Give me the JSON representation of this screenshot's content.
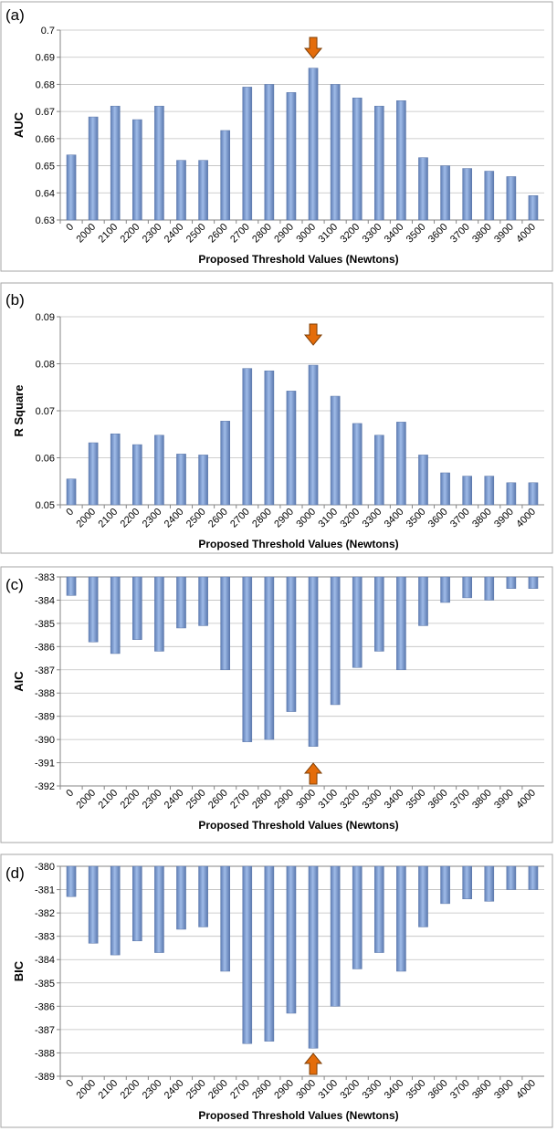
{
  "chart_data": [
    {
      "type": "bar",
      "panel_label": "(a)",
      "title": "",
      "xlabel": "Proposed Threshold Values (Newtons)",
      "ylabel": "AUC",
      "categories": [
        "0",
        "2000",
        "2100",
        "2200",
        "2300",
        "2400",
        "2500",
        "2600",
        "2700",
        "2800",
        "2900",
        "3000",
        "3100",
        "3200",
        "3300",
        "3400",
        "3500",
        "3600",
        "3700",
        "3800",
        "3900",
        "4000"
      ],
      "values": [
        0.654,
        0.668,
        0.672,
        0.667,
        0.672,
        0.652,
        0.652,
        0.663,
        0.679,
        0.68,
        0.677,
        0.686,
        0.68,
        0.675,
        0.672,
        0.674,
        0.653,
        0.65,
        0.649,
        0.648,
        0.646,
        0.639
      ],
      "ylim": [
        0.63,
        0.7
      ],
      "yticks": [
        "0.63",
        "0.64",
        "0.65",
        "0.66",
        "0.67",
        "0.68",
        "0.69",
        "0.7"
      ],
      "arrow": {
        "category": "3000",
        "direction": "down"
      },
      "bar_color": "#7f9fd4"
    },
    {
      "type": "bar",
      "panel_label": "(b)",
      "title": "",
      "xlabel": "Proposed Threshold Values (Newtons)",
      "ylabel": "R Square",
      "categories": [
        "0",
        "2000",
        "2100",
        "2200",
        "2300",
        "2400",
        "2500",
        "2600",
        "2700",
        "2800",
        "2900",
        "3000",
        "3100",
        "3200",
        "3300",
        "3400",
        "3500",
        "3600",
        "3700",
        "3800",
        "3900",
        "4000"
      ],
      "values": [
        0.0555,
        0.0632,
        0.0651,
        0.0628,
        0.0648,
        0.0608,
        0.0606,
        0.0678,
        0.079,
        0.0785,
        0.0742,
        0.0797,
        0.0731,
        0.0673,
        0.0648,
        0.0676,
        0.0606,
        0.0568,
        0.0561,
        0.0561,
        0.0547,
        0.0547
      ],
      "ylim": [
        0.05,
        0.09
      ],
      "yticks": [
        "0.05",
        "0.06",
        "0.07",
        "0.08",
        "0.09"
      ],
      "arrow": {
        "category": "3000",
        "direction": "down"
      },
      "bar_color": "#7f9fd4"
    },
    {
      "type": "bar",
      "panel_label": "(c)",
      "title": "",
      "xlabel": "Proposed Threshold Values (Newtons)",
      "ylabel": "AIC",
      "categories": [
        "0",
        "2000",
        "2100",
        "2200",
        "2300",
        "2400",
        "2500",
        "2600",
        "2700",
        "2800",
        "2900",
        "3000",
        "3100",
        "3200",
        "3300",
        "3400",
        "3500",
        "3600",
        "3700",
        "3800",
        "3900",
        "4000"
      ],
      "values": [
        -383.8,
        -385.8,
        -386.3,
        -385.7,
        -386.2,
        -385.2,
        -385.1,
        -387.0,
        -390.1,
        -390.0,
        -388.8,
        -390.3,
        -388.5,
        -386.9,
        -386.2,
        -387.0,
        -385.1,
        -384.1,
        -383.9,
        -384.0,
        -383.5,
        -383.5
      ],
      "ylim": [
        -392,
        -383
      ],
      "yticks": [
        "-383",
        "-384",
        "-385",
        "-386",
        "-387",
        "-388",
        "-389",
        "-390",
        "-391",
        "-392"
      ],
      "baseline": -383,
      "arrow": {
        "category": "3000",
        "direction": "up"
      },
      "bar_color": "#7f9fd4"
    },
    {
      "type": "bar",
      "panel_label": "(d)",
      "title": "",
      "xlabel": "Proposed Threshold Values (Newtons)",
      "ylabel": "BIC",
      "categories": [
        "0",
        "2000",
        "2100",
        "2200",
        "2300",
        "2400",
        "2500",
        "2600",
        "2700",
        "2800",
        "2900",
        "3000",
        "3100",
        "3200",
        "3300",
        "3400",
        "3500",
        "3600",
        "3700",
        "3800",
        "3900",
        "4000"
      ],
      "values": [
        -381.3,
        -383.3,
        -383.8,
        -383.2,
        -383.7,
        -382.7,
        -382.6,
        -384.5,
        -387.6,
        -387.5,
        -386.3,
        -387.8,
        -386.0,
        -384.4,
        -383.7,
        -384.5,
        -382.6,
        -381.6,
        -381.4,
        -381.5,
        -381.0,
        -381.0
      ],
      "ylim": [
        -389,
        -380
      ],
      "yticks": [
        "-380",
        "-381",
        "-382",
        "-383",
        "-384",
        "-385",
        "-386",
        "-387",
        "-388",
        "-389"
      ],
      "baseline": -380,
      "arrow": {
        "category": "3000",
        "direction": "up"
      },
      "bar_color": "#7f9fd4"
    }
  ]
}
